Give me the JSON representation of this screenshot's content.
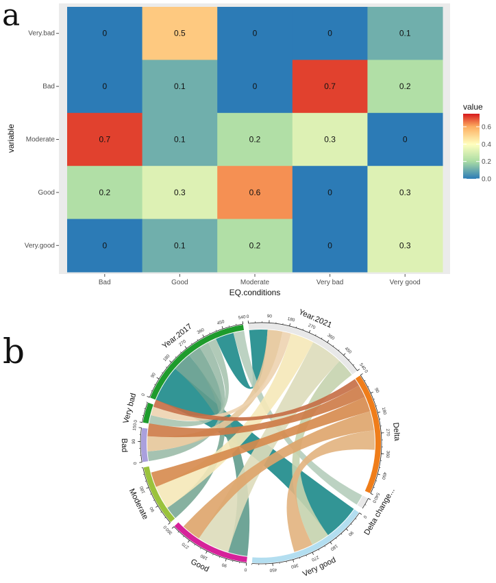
{
  "panel_a": {
    "letter": "a"
  },
  "panel_b": {
    "letter": "b"
  },
  "chart_data": [
    {
      "type": "heatmap",
      "title": "",
      "xlabel": "EQ.conditions",
      "ylabel": "variable",
      "x_categories": [
        "Bad",
        "Good",
        "Moderate",
        "Very bad",
        "Very good"
      ],
      "y_categories": [
        "Very.bad",
        "Bad",
        "Moderate",
        "Good",
        "Very.good"
      ],
      "values": [
        [
          0,
          0.5,
          0,
          0,
          0.1
        ],
        [
          0,
          0.1,
          0,
          0.7,
          0.2
        ],
        [
          0.7,
          0.1,
          0.2,
          0.3,
          0
        ],
        [
          0.2,
          0.3,
          0.6,
          0,
          0.3
        ],
        [
          0,
          0.1,
          0.2,
          0,
          0.3
        ]
      ],
      "cell_labels": [
        [
          "0",
          "0.5",
          "0",
          "0",
          "0.1"
        ],
        [
          "0",
          "0.1",
          "0",
          "0.7",
          "0.2"
        ],
        [
          "0.7",
          "0.1",
          "0.2",
          "0.3",
          "0"
        ],
        [
          "0.2",
          "0.3",
          "0.6",
          "0",
          "0.3"
        ],
        [
          "0",
          "0.1",
          "0.2",
          "0",
          "0.3"
        ]
      ],
      "legend": {
        "title": "value",
        "ticks": [
          "0.6",
          "0.4",
          "0.2",
          "0.0"
        ],
        "range": [
          0,
          0.75
        ],
        "placement": "right"
      },
      "grid": true,
      "colors": {
        "panel_bg": "#ebebeb",
        "scale": [
          "#2c7bb6",
          "#abdda4",
          "#ffffbf",
          "#fdae61",
          "#d7191c"
        ]
      }
    },
    {
      "type": "chord",
      "sectors": [
        {
          "name": "Year.2021",
          "label": "Year.2021",
          "total": 540,
          "ticks": [
            "0",
            "90",
            "180",
            "270",
            "360",
            "450",
            "540"
          ],
          "color": "#e8e8e8"
        },
        {
          "name": "Delta",
          "label": "Delta",
          "total": 540,
          "ticks": [
            "0",
            "90",
            "180",
            "270",
            "360",
            "450",
            "540"
          ],
          "color": "#ef7d1a"
        },
        {
          "name": "Delta change",
          "label": "Delta change...",
          "total": 50,
          "ticks": [
            "0"
          ],
          "color": "#e8e8e8"
        },
        {
          "name": "Very good",
          "label": "Very good",
          "total": 540,
          "ticks": [
            "0",
            "90",
            "180",
            "270",
            "360",
            "450"
          ],
          "color": "#b3def0"
        },
        {
          "name": "Good",
          "label": "Good",
          "total": 360,
          "ticks": [
            "0",
            "90",
            "180",
            "270",
            "360"
          ],
          "color": "#d6229a"
        },
        {
          "name": "Moderate",
          "label": "Moderate",
          "total": 270,
          "ticks": [
            "0",
            "90",
            "180"
          ],
          "color": "#9ac23c"
        },
        {
          "name": "Bad",
          "label": "Bad",
          "total": 150,
          "ticks": [
            "0",
            "90",
            "150"
          ],
          "color": "#aaa0dd"
        },
        {
          "name": "Very bad",
          "label": "Very bad",
          "total": 90,
          "ticks": [
            "0"
          ],
          "color": "#1e9b2c"
        },
        {
          "name": "Year.2017",
          "label": "Year.2017",
          "total": 540,
          "ticks": [
            "0",
            "90",
            "180",
            "270",
            "360",
            "450",
            "540"
          ],
          "color": "#1e9b2c"
        }
      ],
      "links": [
        {
          "from": "Year.2017",
          "to": "Very good",
          "value": 170,
          "color": "#1c8a8a"
        },
        {
          "from": "Year.2017",
          "to": "Good",
          "value": 90,
          "color": "#5f9b8c"
        },
        {
          "from": "Year.2017",
          "to": "Moderate",
          "value": 60,
          "color": "#7aa996"
        },
        {
          "from": "Year.2017",
          "to": "Bad",
          "value": 45,
          "color": "#9bbba8"
        },
        {
          "from": "Year.2017",
          "to": "Very bad",
          "value": 40,
          "color": "#a8c4b0"
        },
        {
          "from": "Year.2017",
          "to": "Year.2021",
          "value": 85,
          "color": "#1c8a8a"
        },
        {
          "from": "Year.2017",
          "to": "Delta change",
          "value": 50,
          "color": "#b5cdbb"
        },
        {
          "from": "Year.2021",
          "to": "Bad",
          "value": 70,
          "color": "#e6c79a"
        },
        {
          "from": "Year.2021",
          "to": "Very bad",
          "value": 40,
          "color": "#edd3b0"
        },
        {
          "from": "Year.2021",
          "to": "Moderate",
          "value": 110,
          "color": "#f5e8b8"
        },
        {
          "from": "Year.2021",
          "to": "Good",
          "value": 150,
          "color": "#dddcba"
        },
        {
          "from": "Year.2021",
          "to": "Very good",
          "value": 85,
          "color": "#c5d3ae"
        },
        {
          "from": "Delta",
          "to": "Very bad",
          "value": 35,
          "color": "#c56d44"
        },
        {
          "from": "Delta",
          "to": "Bad",
          "value": 60,
          "color": "#cd7a46"
        },
        {
          "from": "Delta",
          "to": "Moderate",
          "value": 70,
          "color": "#d68a4c"
        },
        {
          "from": "Delta",
          "to": "Good",
          "value": 90,
          "color": "#dea46a"
        },
        {
          "from": "Delta",
          "to": "Very good",
          "value": 90,
          "color": "#e2b27e"
        }
      ]
    }
  ]
}
